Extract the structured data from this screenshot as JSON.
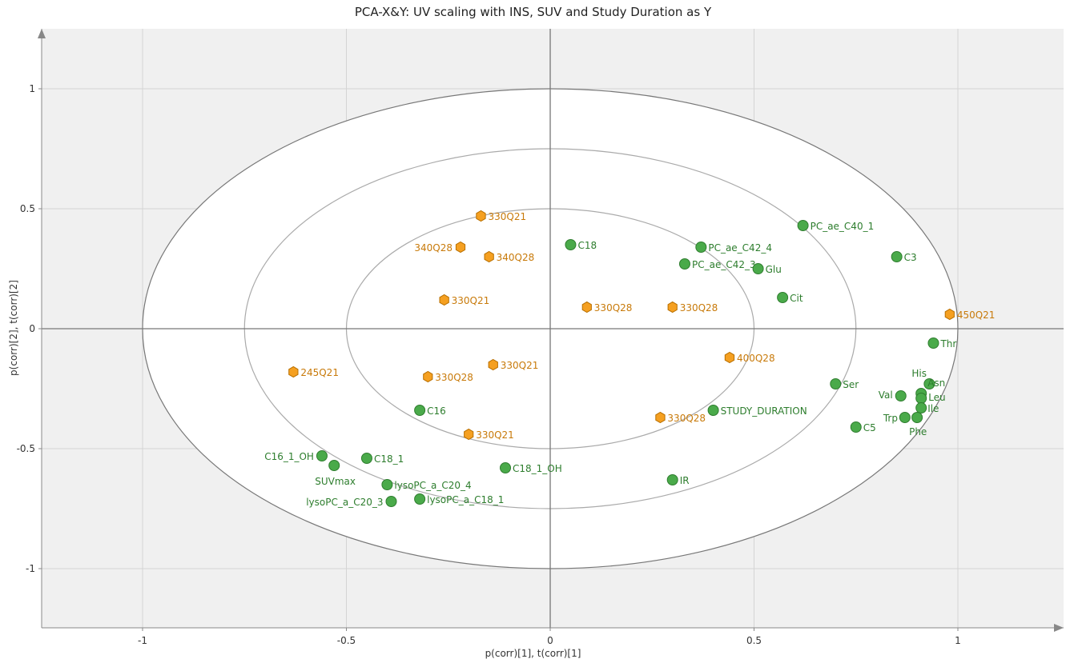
{
  "chart_data": {
    "type": "scatter",
    "title": "PCA-X&Y: UV scaling with INS, SUV and Study Duration as Y",
    "xlabel": "p(corr)[1], t(corr)[1]",
    "ylabel": "p(corr)[2], t(corr)[2]",
    "xlim": [
      -1.25,
      1.25
    ],
    "ylim": [
      -1.25,
      1.25
    ],
    "x_ticks": [
      -1,
      -0.5,
      0,
      0.5,
      1
    ],
    "x_tick_labels": [
      "-1",
      "-0.5",
      "0",
      "0.5",
      "1"
    ],
    "y_ticks": [
      -1,
      -0.5,
      0,
      0.5,
      1
    ],
    "y_tick_labels": [
      "-1",
      "-0.5",
      "0",
      "0.5",
      "1"
    ],
    "grid": true,
    "ellipse_radii": [
      1.0,
      0.75,
      0.5
    ],
    "colors": {
      "variables": "#4aaa4a",
      "observations": "#f5a021",
      "variable_text": "#2d7d2d",
      "observation_text": "#c87a0a"
    },
    "series": [
      {
        "marker": "circle",
        "points": [
          {
            "label": "PC_ae_C40_1",
            "x": 0.62,
            "y": 0.43
          },
          {
            "label": "C3",
            "x": 0.85,
            "y": 0.3
          },
          {
            "label": "C18",
            "x": 0.05,
            "y": 0.35
          },
          {
            "label": "PC_ae_C42_4",
            "x": 0.37,
            "y": 0.34
          },
          {
            "label": "PC_ae_C42_3",
            "x": 0.33,
            "y": 0.27
          },
          {
            "label": "Glu",
            "x": 0.51,
            "y": 0.25
          },
          {
            "label": "Cit",
            "x": 0.57,
            "y": 0.13
          },
          {
            "label": "Thr",
            "x": 0.94,
            "y": -0.06
          },
          {
            "label": "Ser",
            "x": 0.7,
            "y": -0.23
          },
          {
            "label": "His",
            "x": 0.93,
            "y": -0.23
          },
          {
            "label": "Asn",
            "x": 0.91,
            "y": -0.27
          },
          {
            "label": "Val",
            "x": 0.86,
            "y": -0.28
          },
          {
            "label": "Leu",
            "x": 0.91,
            "y": -0.29
          },
          {
            "label": "Ile",
            "x": 0.91,
            "y": -0.33
          },
          {
            "label": "Trp",
            "x": 0.87,
            "y": -0.37
          },
          {
            "label": "Phe",
            "x": 0.9,
            "y": -0.37
          },
          {
            "label": "C5",
            "x": 0.75,
            "y": -0.41
          },
          {
            "label": "STUDY_DURATION",
            "x": 0.4,
            "y": -0.34
          },
          {
            "label": "C16",
            "x": -0.32,
            "y": -0.34
          },
          {
            "label": "C16_1_OH",
            "x": -0.56,
            "y": -0.53
          },
          {
            "label": "SUVmax",
            "x": -0.53,
            "y": -0.57
          },
          {
            "label": "C18_1",
            "x": -0.45,
            "y": -0.54
          },
          {
            "label": "C18_1_OH",
            "x": -0.11,
            "y": -0.58
          },
          {
            "label": "lysoPC_a_C20_4",
            "x": -0.4,
            "y": -0.65
          },
          {
            "label": "lysoPC_a_C20_3",
            "x": -0.39,
            "y": -0.72
          },
          {
            "label": "lysoPC_a_C18_1",
            "x": -0.32,
            "y": -0.71
          },
          {
            "label": "IR",
            "x": 0.3,
            "y": -0.63
          }
        ]
      },
      {
        "marker": "hexagon",
        "points": [
          {
            "label": "330Q21",
            "x": -0.17,
            "y": 0.47
          },
          {
            "label": "340Q28",
            "x": -0.22,
            "y": 0.34
          },
          {
            "label": "340Q28",
            "x": -0.15,
            "y": 0.3
          },
          {
            "label": "330Q21",
            "x": -0.26,
            "y": 0.12
          },
          {
            "label": "330Q28",
            "x": 0.09,
            "y": 0.09
          },
          {
            "label": "330Q28",
            "x": 0.3,
            "y": 0.09
          },
          {
            "label": "450Q21",
            "x": 0.98,
            "y": 0.06
          },
          {
            "label": "400Q28",
            "x": 0.44,
            "y": -0.12
          },
          {
            "label": "245Q21",
            "x": -0.63,
            "y": -0.18
          },
          {
            "label": "330Q28",
            "x": -0.3,
            "y": -0.2
          },
          {
            "label": "330Q21",
            "x": -0.14,
            "y": -0.15
          },
          {
            "label": "330Q21",
            "x": -0.2,
            "y": -0.44
          },
          {
            "label": "330Q28",
            "x": 0.27,
            "y": -0.37
          }
        ]
      }
    ]
  }
}
